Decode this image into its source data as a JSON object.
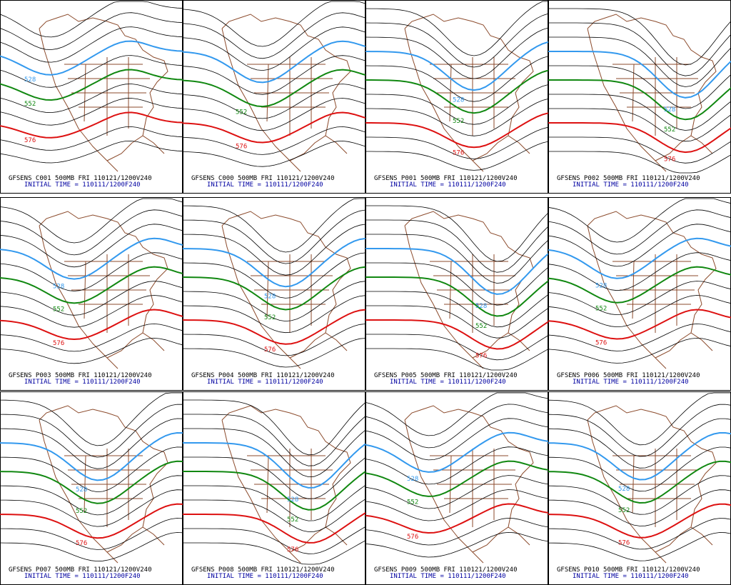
{
  "panels": [
    {
      "caption": "GFSENS C001 500MB FRI 110121/1200V240",
      "initial": "INITIAL TIME = 110111/1200F240",
      "labels": [
        "528",
        "552",
        "576"
      ]
    },
    {
      "caption": "GFSENS C000 500MB FRI 110121/1200V240",
      "initial": "INITIAL TIME = 110111/1200F240",
      "labels": [
        "552",
        "576"
      ]
    },
    {
      "caption": "GFSENS P001 500MB FRI 110121/1200V240",
      "initial": "INITIAL TIME = 110111/1200F240",
      "labels": [
        "528",
        "552",
        "576"
      ]
    },
    {
      "caption": "GFSENS P002 500MB FRI 110121/1200V240",
      "initial": "INITIAL TIME = 110111/1200F240",
      "labels": [
        "528",
        "552",
        "576"
      ]
    },
    {
      "caption": "GFSENS P003 500MB FRI 110121/1200V240",
      "initial": "INITIAL TIME = 110111/1200F240",
      "labels": [
        "528",
        "552",
        "576"
      ]
    },
    {
      "caption": "GFSENS P004 500MB FRI 110121/1200V240",
      "initial": "INITIAL TIME = 110111/1200F240",
      "labels": [
        "528",
        "552",
        "576"
      ]
    },
    {
      "caption": "GFSENS P005 500MB FRI 110121/1200V240",
      "initial": "INITIAL TIME = 110111/1200F240",
      "labels": [
        "528",
        "552",
        "576"
      ]
    },
    {
      "caption": "GFSENS P006 500MB FRI 110121/1200V240",
      "initial": "INITIAL TIME = 110111/1200F240",
      "labels": [
        "528",
        "552",
        "576"
      ]
    },
    {
      "caption": "GFSENS P007 500MB FRI 110121/1200V240",
      "initial": "INITIAL TIME = 110111/1200F240",
      "labels": [
        "528",
        "552",
        "576"
      ]
    },
    {
      "caption": "GFSENS P008 500MB FRI 110121/1200V240",
      "initial": "INITIAL TIME = 110111/1200F240",
      "labels": [
        "528",
        "552",
        "576"
      ]
    },
    {
      "caption": "GFSENS P009 500MB FRI 110121/1200V240",
      "initial": "INITIAL TIME = 110111/1200F240",
      "labels": [
        "528",
        "552",
        "576"
      ]
    },
    {
      "caption": "GFSENS P010 500MB FRI 110121/1200V240",
      "initial": "INITIAL TIME = 110111/1200F240",
      "labels": [
        "528",
        "552",
        "576"
      ]
    }
  ]
}
